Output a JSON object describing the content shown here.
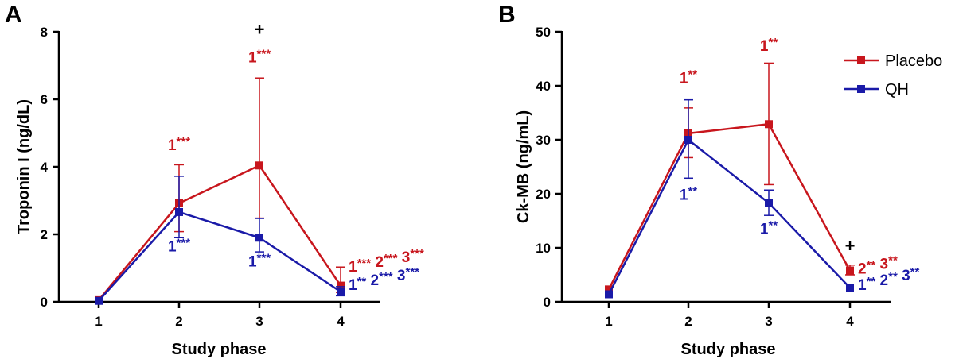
{
  "colors": {
    "placebo": "#c8161d",
    "qh": "#1a1aa8"
  },
  "chart_data": [
    {
      "id": "A",
      "type": "line",
      "panel_label": "A",
      "xlabel": "Study phase",
      "ylabel": "Troponin I (ng/dL)",
      "categories": [
        "1",
        "2",
        "3",
        "4"
      ],
      "ylim": [
        0,
        8
      ],
      "yticks": [
        0,
        2,
        4,
        6,
        8
      ],
      "series": [
        {
          "name": "Placebo",
          "color": "#c8161d",
          "values": [
            0.05,
            2.92,
            4.04,
            0.48
          ],
          "err_lower": [
            0.05,
            2.08,
            2.48,
            0.28
          ],
          "err_upper": [
            0.05,
            4.06,
            6.63,
            1.03
          ]
        },
        {
          "name": "QH",
          "color": "#1a1aa8",
          "values": [
            0.03,
            2.66,
            1.9,
            0.3
          ],
          "err_lower": [
            0.03,
            1.9,
            1.48,
            0.18
          ],
          "err_upper": [
            0.03,
            3.72,
            2.47,
            0.45
          ]
        }
      ],
      "annotations": [
        {
          "text": "1***",
          "series": "Placebo",
          "x": 2,
          "y": 4.5
        },
        {
          "text": "1***",
          "series": "Placebo",
          "x": 3,
          "y": 7.1
        },
        {
          "text": "1*** 2*** 3***",
          "series": "Placebo",
          "x": 4,
          "y": 0.9
        },
        {
          "text": "1***",
          "series": "QH",
          "x": 2,
          "y": 1.5
        },
        {
          "text": "1***",
          "series": "QH",
          "x": 3,
          "y": 1.05
        },
        {
          "text": "1** 2*** 3***",
          "series": "QH",
          "x": 4,
          "y": 0.35
        },
        {
          "text": "+",
          "series": "black",
          "x": 3,
          "y": 7.9
        }
      ]
    },
    {
      "id": "B",
      "type": "line",
      "panel_label": "B",
      "xlabel": "Study phase",
      "ylabel": "Ck-MB (ng/mL)",
      "categories": [
        "1",
        "2",
        "3",
        "4"
      ],
      "ylim": [
        0,
        50
      ],
      "yticks": [
        0,
        10,
        20,
        30,
        40,
        50
      ],
      "legend_position": "top-right",
      "series": [
        {
          "name": "Placebo",
          "color": "#c8161d",
          "values": [
            2.3,
            31.2,
            32.9,
            5.8
          ],
          "err_lower": [
            2.3,
            26.7,
            21.7,
            5.0
          ],
          "err_upper": [
            2.3,
            35.9,
            44.2,
            6.8
          ]
        },
        {
          "name": "QH",
          "color": "#1a1aa8",
          "values": [
            1.4,
            30.0,
            18.3,
            2.6
          ],
          "err_lower": [
            1.4,
            22.9,
            16.0,
            2.6
          ],
          "err_upper": [
            1.4,
            37.4,
            20.7,
            2.6
          ]
        }
      ],
      "annotations": [
        {
          "text": "1**",
          "series": "Placebo",
          "x": 2,
          "y": 40.5
        },
        {
          "text": "1**",
          "series": "Placebo",
          "x": 3,
          "y": 46.5
        },
        {
          "text": "2** 3**",
          "series": "Placebo",
          "x": 4,
          "y": 5.2
        },
        {
          "text": "1**",
          "series": "QH",
          "x": 2,
          "y": 18.9
        },
        {
          "text": "1**",
          "series": "QH",
          "x": 3,
          "y": 12.6
        },
        {
          "text": "1** 2** 3**",
          "series": "QH",
          "x": 4,
          "y": 2.2
        },
        {
          "text": "+",
          "series": "black",
          "x": 4,
          "y": 9.3
        }
      ]
    }
  ]
}
